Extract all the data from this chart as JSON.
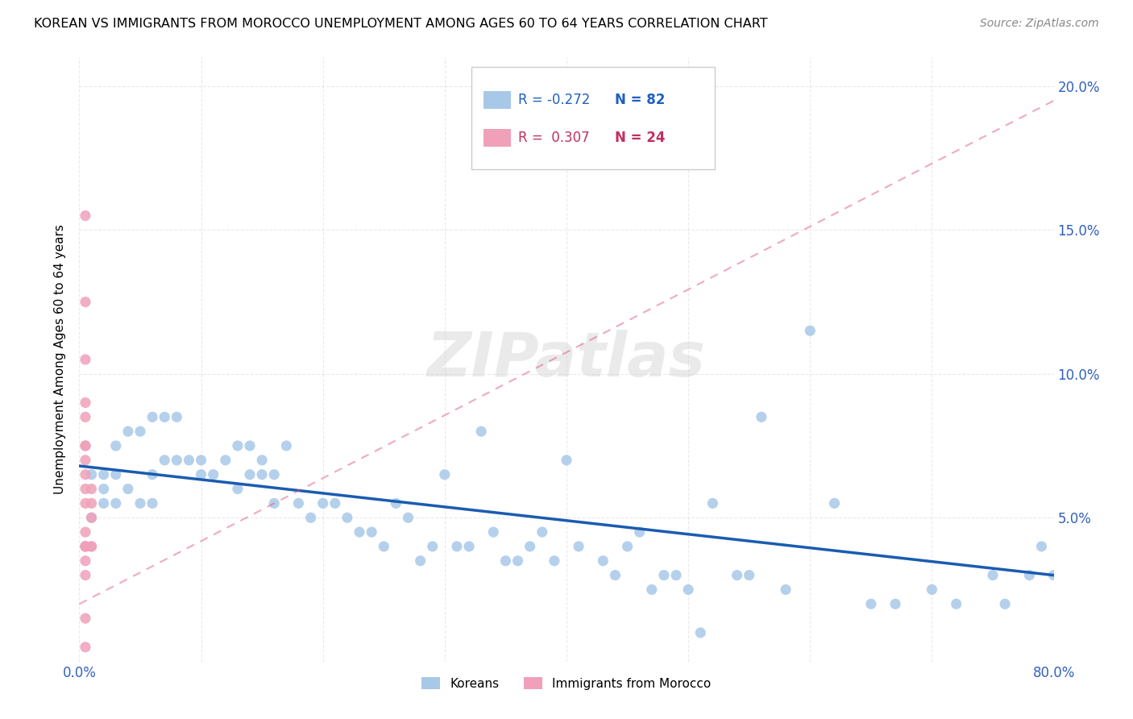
{
  "title": "KOREAN VS IMMIGRANTS FROM MOROCCO UNEMPLOYMENT AMONG AGES 60 TO 64 YEARS CORRELATION CHART",
  "source": "Source: ZipAtlas.com",
  "ylabel": "Unemployment Among Ages 60 to 64 years",
  "xlim": [
    0,
    0.8
  ],
  "ylim": [
    0,
    0.21
  ],
  "xticks": [
    0.0,
    0.1,
    0.2,
    0.3,
    0.4,
    0.5,
    0.6,
    0.7,
    0.8
  ],
  "yticks": [
    0.0,
    0.05,
    0.1,
    0.15,
    0.2
  ],
  "korean_color": "#a8c8e8",
  "morocco_color": "#f0a0b8",
  "korean_line_color": "#1a5cb0",
  "morocco_line_color": "#e05878",
  "legend_R_korean": "-0.272",
  "legend_N_korean": "82",
  "legend_R_morocco": "0.307",
  "legend_N_morocco": "24",
  "legend_label_korean": "Koreans",
  "legend_label_morocco": "Immigrants from Morocco",
  "watermark": "ZIPatlas",
  "korean_x": [
    0.01,
    0.01,
    0.02,
    0.02,
    0.02,
    0.03,
    0.03,
    0.03,
    0.04,
    0.04,
    0.05,
    0.05,
    0.06,
    0.06,
    0.06,
    0.07,
    0.07,
    0.08,
    0.08,
    0.09,
    0.1,
    0.1,
    0.11,
    0.12,
    0.13,
    0.13,
    0.14,
    0.14,
    0.15,
    0.15,
    0.16,
    0.16,
    0.17,
    0.18,
    0.19,
    0.2,
    0.21,
    0.22,
    0.23,
    0.24,
    0.25,
    0.26,
    0.27,
    0.28,
    0.29,
    0.3,
    0.31,
    0.32,
    0.33,
    0.34,
    0.35,
    0.36,
    0.37,
    0.38,
    0.39,
    0.4,
    0.41,
    0.43,
    0.44,
    0.45,
    0.46,
    0.47,
    0.48,
    0.49,
    0.5,
    0.51,
    0.52,
    0.54,
    0.55,
    0.56,
    0.58,
    0.6,
    0.62,
    0.65,
    0.67,
    0.7,
    0.72,
    0.75,
    0.76,
    0.78,
    0.79,
    0.8
  ],
  "korean_y": [
    0.065,
    0.05,
    0.065,
    0.06,
    0.055,
    0.075,
    0.065,
    0.055,
    0.06,
    0.08,
    0.055,
    0.08,
    0.055,
    0.085,
    0.065,
    0.085,
    0.07,
    0.085,
    0.07,
    0.07,
    0.065,
    0.07,
    0.065,
    0.07,
    0.06,
    0.075,
    0.065,
    0.075,
    0.07,
    0.065,
    0.065,
    0.055,
    0.075,
    0.055,
    0.05,
    0.055,
    0.055,
    0.05,
    0.045,
    0.045,
    0.04,
    0.055,
    0.05,
    0.035,
    0.04,
    0.065,
    0.04,
    0.04,
    0.08,
    0.045,
    0.035,
    0.035,
    0.04,
    0.045,
    0.035,
    0.07,
    0.04,
    0.035,
    0.03,
    0.04,
    0.045,
    0.025,
    0.03,
    0.03,
    0.025,
    0.01,
    0.055,
    0.03,
    0.03,
    0.085,
    0.025,
    0.115,
    0.055,
    0.02,
    0.02,
    0.025,
    0.02,
    0.03,
    0.02,
    0.03,
    0.04,
    0.03
  ],
  "morocco_x": [
    0.005,
    0.005,
    0.005,
    0.005,
    0.005,
    0.005,
    0.005,
    0.005,
    0.005,
    0.005,
    0.005,
    0.005,
    0.005,
    0.005,
    0.005,
    0.005,
    0.005,
    0.005,
    0.01,
    0.01,
    0.01,
    0.01,
    0.01,
    0.005
  ],
  "morocco_y": [
    0.155,
    0.125,
    0.105,
    0.09,
    0.085,
    0.075,
    0.075,
    0.07,
    0.065,
    0.06,
    0.055,
    0.045,
    0.04,
    0.04,
    0.035,
    0.03,
    0.015,
    0.005,
    0.06,
    0.055,
    0.05,
    0.04,
    0.04,
    0.04
  ],
  "korean_trend_x": [
    0.0,
    0.8
  ],
  "korean_trend_y": [
    0.068,
    0.03
  ],
  "morocco_trend_x": [
    0.0,
    0.8
  ],
  "morocco_trend_y": [
    0.02,
    0.195
  ]
}
